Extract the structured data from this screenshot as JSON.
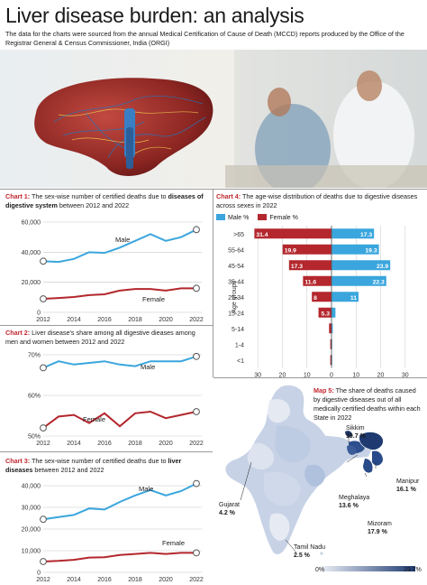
{
  "page": {
    "title": "Liver disease burden: an analysis",
    "intro": "The data for the charts were sourced from the annual Medical Certification of Cause of Death (MCCD) reports produced by the Office of the Registrar General & Census Commissioner, India (ORGI)"
  },
  "colors": {
    "male": "#3aa6dd",
    "female": "#b3272d",
    "map_low": "#e8edf5",
    "map_high": "#1e3a70",
    "accent_label": "#c2272d"
  },
  "chart1": {
    "label": "Chart 1:",
    "text": " The sex-wise number of certified deaths due to ",
    "bold": "diseases of digestive system",
    "tail": " between 2012 and 2022"
  },
  "chart2": {
    "label": "Chart 2:",
    "text": " Liver disease's share among all digestive dieases among men and women between 2012 and 2022"
  },
  "chart3": {
    "label": "Chart 3:",
    "text": " The sex-wise number of certified deaths due to ",
    "bold": "liver diseases",
    "tail": " between 2012 and 2022"
  },
  "chart4": {
    "label": "Chart 4:",
    "text": " The age-wise distribution of deaths due to digestive diseases across sexes in 2022",
    "legend_male": "Male %",
    "legend_female": "Female %",
    "axis_title": "Age groups"
  },
  "map5": {
    "label": "Map 5:",
    "text": " The share of deaths caused by digestive diseases out of all medically certified deaths within each State in 2022",
    "scale_min": "0%",
    "scale_max": "19.7%",
    "states": [
      {
        "name": "Sikkim",
        "value": "19.7 %"
      },
      {
        "name": "Manipur",
        "value": "16.1 %"
      },
      {
        "name": "Meghalaya",
        "value": "13.6 %"
      },
      {
        "name": "Mizoram",
        "value": "17.9 %"
      },
      {
        "name": "Gujarat",
        "value": "4.2 %"
      },
      {
        "name": "Tamil Nadu",
        "value": "2.5 %"
      }
    ]
  },
  "chart_data": [
    {
      "type": "line",
      "x": [
        2012,
        2013,
        2014,
        2015,
        2016,
        2017,
        2018,
        2019,
        2020,
        2021,
        2022
      ],
      "x_ticks": [
        "2012",
        "2014",
        "2016",
        "2018",
        "2020",
        "2022"
      ],
      "y_ticks": [
        "0",
        "20,000",
        "40,000",
        "60,000"
      ],
      "ylim": [
        0,
        60000
      ],
      "series": [
        {
          "name": "Male",
          "values": [
            34000,
            33500,
            35500,
            40000,
            39500,
            43000,
            47500,
            52000,
            47500,
            50000,
            55000
          ]
        },
        {
          "name": "Female",
          "values": [
            9000,
            9500,
            10200,
            11500,
            12000,
            14500,
            15500,
            15500,
            14500,
            16000,
            16000
          ]
        }
      ]
    },
    {
      "type": "line",
      "x": [
        2012,
        2013,
        2014,
        2015,
        2016,
        2017,
        2018,
        2019,
        2020,
        2021,
        2022
      ],
      "x_ticks": [
        "2012",
        "2014",
        "2016",
        "2018",
        "2020",
        "2022"
      ],
      "y_ticks": [
        "50%",
        "60%",
        "70%"
      ],
      "ylim": [
        50,
        75
      ],
      "series": [
        {
          "name": "Male",
          "values": [
            71,
            73,
            72,
            72.5,
            73,
            72,
            71.5,
            73,
            73,
            73,
            74.5
          ]
        },
        {
          "name": "Female",
          "values": [
            52.5,
            56,
            56.5,
            54,
            57,
            53,
            57,
            57.5,
            55.5,
            56.5,
            57.5
          ]
        }
      ]
    },
    {
      "type": "line",
      "x": [
        2012,
        2013,
        2014,
        2015,
        2016,
        2017,
        2018,
        2019,
        2020,
        2021,
        2022
      ],
      "x_ticks": [
        "2012",
        "2014",
        "2016",
        "2018",
        "2020",
        "2022"
      ],
      "y_ticks": [
        "0",
        "10,000",
        "20,000",
        "30,000",
        "40,000"
      ],
      "ylim": [
        0,
        40000
      ],
      "series": [
        {
          "name": "Male",
          "values": [
            24500,
            25500,
            26500,
            29500,
            29000,
            32500,
            35500,
            38000,
            35500,
            37500,
            41000
          ]
        },
        {
          "name": "Female",
          "values": [
            5000,
            5300,
            5800,
            6800,
            7000,
            8000,
            8500,
            9000,
            8500,
            9000,
            9000
          ]
        }
      ]
    },
    {
      "type": "bar",
      "orientation": "diverging",
      "categories": [
        ">65",
        "55-64",
        "45-54",
        "35-44",
        "25-34",
        "15-24",
        "5-14",
        "1-4",
        "<1"
      ],
      "series": [
        {
          "name": "Male %",
          "values": [
            17.3,
            19.3,
            23.9,
            22.3,
            11,
            1.6,
            0.5,
            0.3,
            0.3
          ]
        },
        {
          "name": "Female %",
          "values": [
            31.4,
            19.9,
            17.3,
            11.6,
            8,
            5.3,
            1,
            0.5,
            0.5
          ]
        }
      ],
      "data_labels": {
        "male": [
          "17.3",
          "19.3",
          "23.9",
          "22.3",
          "11",
          "",
          "",
          "",
          ""
        ],
        "female": [
          "31.4",
          "19.9",
          "17.3",
          "11.6",
          "8",
          "5.3",
          "",
          "",
          ""
        ]
      },
      "x_ticks": [
        "30",
        "20",
        "10",
        "0",
        "10",
        "20",
        "30"
      ],
      "xlim": [
        -33,
        33
      ],
      "ylabel": "Age groups"
    }
  ]
}
